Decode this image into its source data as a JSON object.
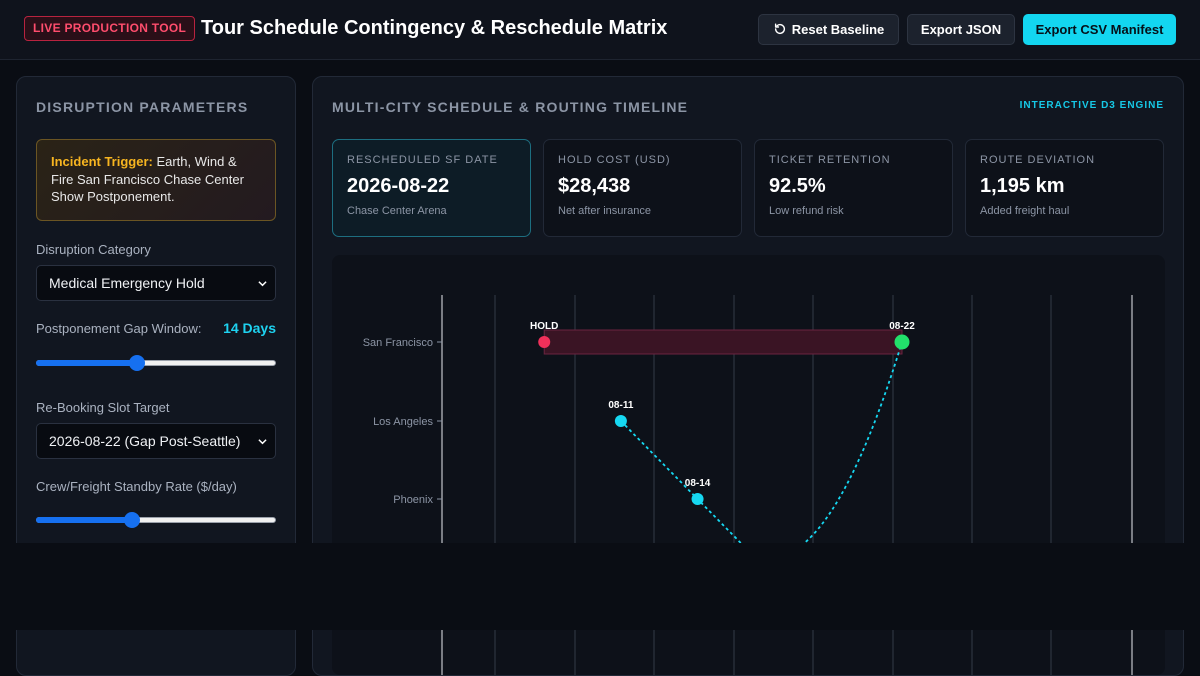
{
  "header": {
    "badge": "LIVE PRODUCTION TOOL",
    "title": "Tour Schedule Contingency & Reschedule Matrix",
    "reset_label": "Reset Baseline",
    "export_json_label": "Export JSON",
    "export_csv_label": "Export CSV Manifest"
  },
  "left": {
    "heading": "DISRUPTION PARAMETERS",
    "incident_label": "Incident Trigger:",
    "incident_text": " Earth, Wind & Fire San Francisco Chase Center Show Postponement.",
    "category_label": "Disruption Category",
    "category_value": "Medical Emergency Hold",
    "gap_label": "Postponement Gap Window:",
    "gap_value": "14 Days",
    "gap_fraction": 0.42,
    "slot_label": "Re-Booking Slot Target",
    "slot_value": "2026-08-22 (Gap Post-Seattle)",
    "rate_label": "Crew/Freight Standby Rate ($/day)",
    "rate_fraction": 0.4
  },
  "right": {
    "heading": "MULTI-CITY SCHEDULE & ROUTING TIMELINE",
    "engine_tag": "INTERACTIVE D3 ENGINE",
    "kpis": [
      {
        "label": "RESCHEDULED SF DATE",
        "value": "2026-08-22",
        "sub": "Chase Center Arena"
      },
      {
        "label": "HOLD COST (USD)",
        "value": "$28,438",
        "sub": "Net after insurance"
      },
      {
        "label": "TICKET RETENTION",
        "value": "92.5%",
        "sub": "Low refund risk"
      },
      {
        "label": "ROUTE DEVIATION",
        "value": "1,195 km",
        "sub": "Added freight haul"
      }
    ]
  },
  "chart_data": {
    "type": "scatter",
    "cities": [
      "San Francisco",
      "Los Angeles",
      "Phoenix"
    ],
    "x_range": [
      "08-04",
      "08-31"
    ],
    "hold_label": "HOLD",
    "hold_start": "08-08",
    "points": [
      {
        "city": "San Francisco",
        "date": "08-22",
        "label": "08-22",
        "status": "rescheduled"
      },
      {
        "city": "Los Angeles",
        "date": "08-11",
        "label": "08-11",
        "status": "scheduled"
      },
      {
        "city": "Phoenix",
        "date": "08-14",
        "label": "08-14",
        "status": "scheduled"
      }
    ],
    "colors": {
      "hold": "#f0305a",
      "rescheduled": "#22e06b",
      "scheduled": "#16d8f2",
      "hold_band": "#3a1424"
    }
  }
}
